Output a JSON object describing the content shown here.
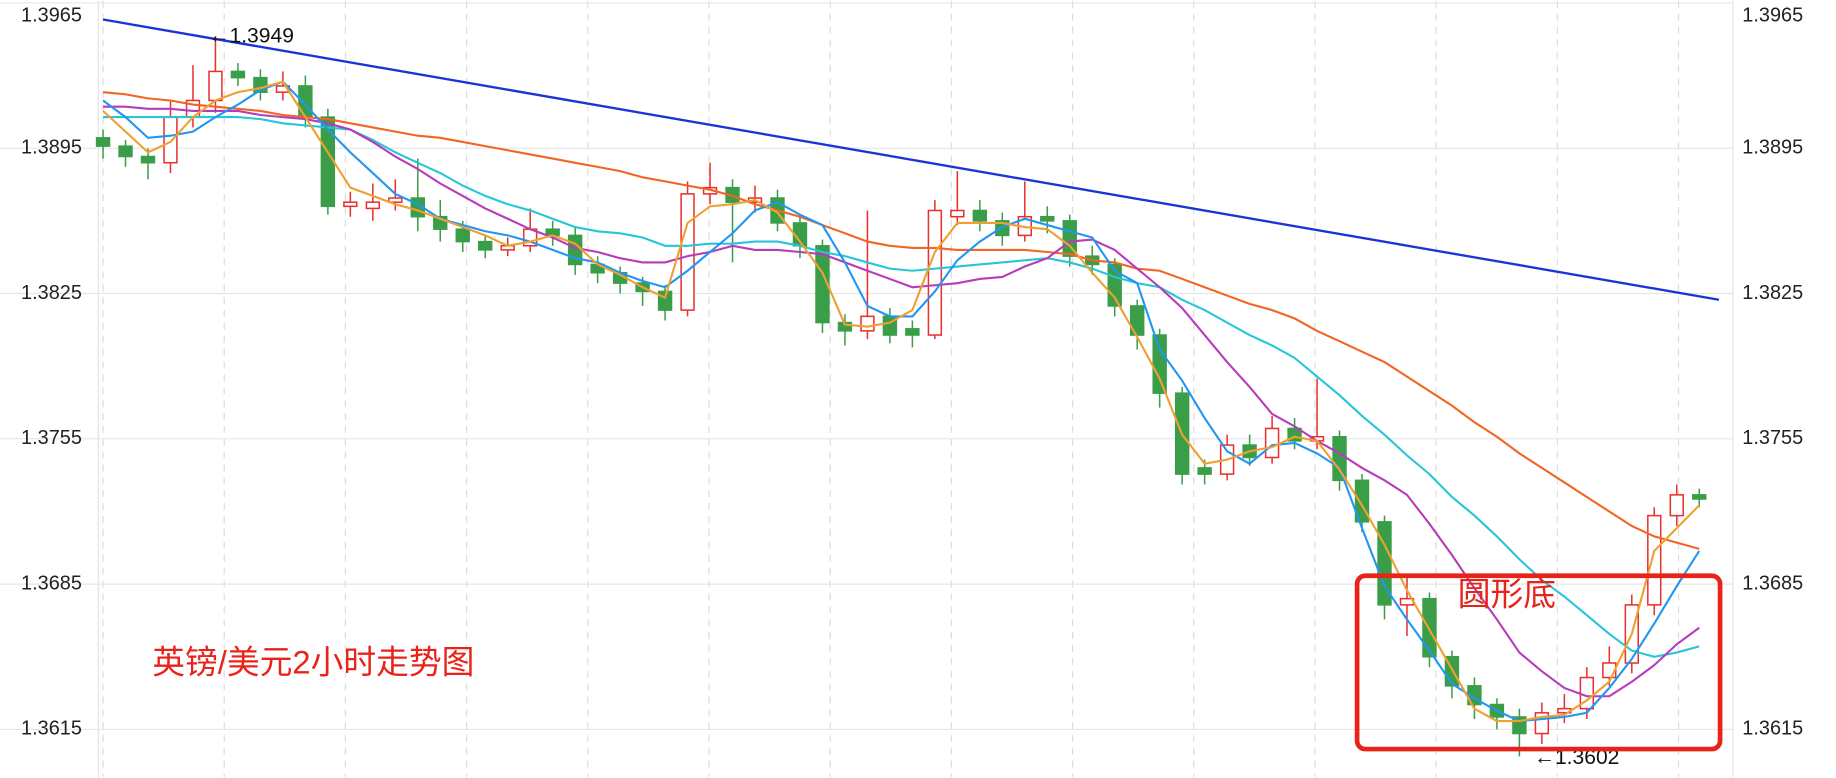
{
  "chart_data": {
    "type": "candlestick",
    "title": "英镑/美元2小时走势图",
    "ylim": [
      1.3592,
      1.3966
    ],
    "yticks": [
      1.3615,
      1.3685,
      1.3755,
      1.3825,
      1.3895,
      1.3965
    ],
    "grid": true,
    "up_color": "#e8302e",
    "down_color": "#3a9e49",
    "open": [
      1.39,
      1.3896,
      1.3891,
      1.3888,
      1.391,
      1.3918,
      1.3932,
      1.3929,
      1.3922,
      1.3925,
      1.391,
      1.3867,
      1.3866,
      1.3869,
      1.3871,
      1.3862,
      1.3856,
      1.385,
      1.3846,
      1.3848,
      1.3856,
      1.3853,
      1.3839,
      1.3835,
      1.383,
      1.3826,
      1.3817,
      1.3873,
      1.3876,
      1.3869,
      1.3871,
      1.3859,
      1.3848,
      1.3811,
      1.3807,
      1.3814,
      1.3808,
      1.3805,
      1.3862,
      1.3865,
      1.386,
      1.3853,
      1.3862,
      1.386,
      1.3843,
      1.3839,
      1.3819,
      1.3805,
      1.3777,
      1.3741,
      1.3738,
      1.3752,
      1.3746,
      1.376,
      1.3754,
      1.3756,
      1.3735,
      1.3715,
      1.3675,
      1.3678,
      1.365,
      1.3636,
      1.3627,
      1.3621,
      1.3613,
      1.3623,
      1.3625,
      1.364,
      1.3647,
      1.3675,
      1.3718,
      1.3728
    ],
    "high": [
      1.3904,
      1.3899,
      1.3895,
      1.3918,
      1.3935,
      1.3949,
      1.3936,
      1.3933,
      1.3932,
      1.393,
      1.3914,
      1.3874,
      1.3878,
      1.388,
      1.389,
      1.387,
      1.386,
      1.3853,
      1.3852,
      1.3866,
      1.386,
      1.3857,
      1.3843,
      1.3838,
      1.3833,
      1.3829,
      1.3879,
      1.3888,
      1.388,
      1.3877,
      1.3875,
      1.3862,
      1.3851,
      1.3815,
      1.3865,
      1.3818,
      1.3812,
      1.387,
      1.3884,
      1.387,
      1.3864,
      1.3879,
      1.3867,
      1.3863,
      1.3848,
      1.3842,
      1.3822,
      1.3808,
      1.378,
      1.3745,
      1.3757,
      1.3757,
      1.3766,
      1.3765,
      1.3784,
      1.3759,
      1.3738,
      1.3718,
      1.3688,
      1.3681,
      1.3653,
      1.364,
      1.363,
      1.3625,
      1.3628,
      1.3632,
      1.3645,
      1.3655,
      1.368,
      1.3722,
      1.3733,
      1.3731
    ],
    "low": [
      1.389,
      1.3886,
      1.388,
      1.3883,
      1.3905,
      1.3912,
      1.3925,
      1.3918,
      1.3918,
      1.3905,
      1.3863,
      1.3862,
      1.386,
      1.3865,
      1.3855,
      1.385,
      1.3845,
      1.3842,
      1.3843,
      1.3845,
      1.3848,
      1.3834,
      1.383,
      1.3825,
      1.3819,
      1.3812,
      1.3814,
      1.3868,
      1.384,
      1.3864,
      1.3855,
      1.3842,
      1.3806,
      1.38,
      1.3803,
      1.3801,
      1.3799,
      1.3803,
      1.3858,
      1.3855,
      1.3848,
      1.385,
      1.3854,
      1.3838,
      1.3834,
      1.3814,
      1.3798,
      1.377,
      1.3733,
      1.3733,
      1.3735,
      1.3742,
      1.3743,
      1.375,
      1.375,
      1.373,
      1.371,
      1.3668,
      1.366,
      1.3645,
      1.363,
      1.362,
      1.3615,
      1.3602,
      1.3608,
      1.3618,
      1.362,
      1.3636,
      1.3642,
      1.367,
      1.3713,
      1.3722
    ],
    "close": [
      1.3896,
      1.3891,
      1.3888,
      1.391,
      1.3918,
      1.3932,
      1.3929,
      1.3922,
      1.3925,
      1.391,
      1.3867,
      1.3869,
      1.3869,
      1.3871,
      1.3862,
      1.3856,
      1.385,
      1.3846,
      1.3848,
      1.3856,
      1.3853,
      1.3839,
      1.3835,
      1.383,
      1.3826,
      1.3817,
      1.3873,
      1.3876,
      1.3869,
      1.3871,
      1.3859,
      1.3848,
      1.3811,
      1.3807,
      1.3814,
      1.3805,
      1.3805,
      1.3865,
      1.3865,
      1.386,
      1.3853,
      1.3862,
      1.386,
      1.3843,
      1.3839,
      1.3819,
      1.3805,
      1.3777,
      1.3738,
      1.3738,
      1.3752,
      1.3746,
      1.376,
      1.3754,
      1.3756,
      1.3735,
      1.3715,
      1.3675,
      1.3678,
      1.365,
      1.3636,
      1.3627,
      1.3621,
      1.3613,
      1.3623,
      1.3625,
      1.364,
      1.3647,
      1.3675,
      1.3718,
      1.3728,
      1.3726
    ],
    "series": [
      {
        "color": "#f26522",
        "values": [
          1.3922,
          1.3921,
          1.3919,
          1.3918,
          1.3916,
          1.3915,
          1.3914,
          1.3913,
          1.3911,
          1.391,
          1.3909,
          1.3907,
          1.3905,
          1.3903,
          1.3901,
          1.39,
          1.3898,
          1.3896,
          1.3894,
          1.3892,
          1.389,
          1.3888,
          1.3886,
          1.3884,
          1.3881,
          1.3879,
          1.3877,
          1.3875,
          1.3872,
          1.3868,
          1.3865,
          1.3862,
          1.3858,
          1.3854,
          1.385,
          1.3848,
          1.3847,
          1.3847,
          1.3846,
          1.3846,
          1.3846,
          1.3846,
          1.3845,
          1.3844,
          1.3841,
          1.384,
          1.3837,
          1.3836,
          1.3832,
          1.3828,
          1.3824,
          1.382,
          1.3817,
          1.3813,
          1.3807,
          1.3802,
          1.3797,
          1.3792,
          1.3785,
          1.3778,
          1.3771,
          1.3763,
          1.3756,
          1.3748,
          1.3741,
          1.3734,
          1.3727,
          1.372,
          1.3713,
          1.3708,
          1.3705,
          1.3702
        ]
      },
      {
        "color": "#26c6da",
        "values": [
          1.391,
          1.391,
          1.391,
          1.391,
          1.391,
          1.391,
          1.391,
          1.3909,
          1.3907,
          1.3906,
          1.3905,
          1.3904,
          1.3899,
          1.3893,
          1.3888,
          1.3883,
          1.3877,
          1.3872,
          1.3868,
          1.3865,
          1.3861,
          1.3857,
          1.3855,
          1.3854,
          1.3852,
          1.3848,
          1.3848,
          1.3849,
          1.3849,
          1.385,
          1.385,
          1.3848,
          1.3845,
          1.3843,
          1.384,
          1.3837,
          1.3836,
          1.3837,
          1.3838,
          1.3839,
          1.384,
          1.3841,
          1.3842,
          1.384,
          1.3837,
          1.3833,
          1.383,
          1.3828,
          1.3822,
          1.3817,
          1.3811,
          1.3805,
          1.38,
          1.3794,
          1.3785,
          1.3776,
          1.3766,
          1.3757,
          1.3747,
          1.3738,
          1.3727,
          1.3718,
          1.3708,
          1.3697,
          1.3687,
          1.3679,
          1.367,
          1.3661,
          1.3653,
          1.365,
          1.3652,
          1.3655
        ]
      },
      {
        "color": "#b83bb8",
        "values": [
          1.3915,
          1.3915,
          1.3914,
          1.3914,
          1.3913,
          1.3913,
          1.3913,
          1.3911,
          1.391,
          1.3909,
          1.3907,
          1.3904,
          1.3898,
          1.3891,
          1.3885,
          1.3878,
          1.3872,
          1.3866,
          1.3861,
          1.3856,
          1.3852,
          1.3847,
          1.3845,
          1.3842,
          1.384,
          1.384,
          1.3843,
          1.3845,
          1.3848,
          1.3846,
          1.3846,
          1.3845,
          1.3844,
          1.384,
          1.3836,
          1.3832,
          1.3828,
          1.3829,
          1.383,
          1.3832,
          1.3833,
          1.3838,
          1.3842,
          1.385,
          1.3851,
          1.3846,
          1.3837,
          1.3828,
          1.3818,
          1.3805,
          1.3792,
          1.378,
          1.3767,
          1.3761,
          1.3754,
          1.3748,
          1.3741,
          1.3735,
          1.3728,
          1.3714,
          1.3699,
          1.3683,
          1.3668,
          1.3652,
          1.3643,
          1.3635,
          1.3631,
          1.3631,
          1.3638,
          1.3646,
          1.3656,
          1.3664
        ]
      },
      {
        "color": "#2196f3",
        "values": [
          1.3918,
          1.391,
          1.39,
          1.3901,
          1.3903,
          1.391,
          1.3916,
          1.3923,
          1.3927,
          1.3916,
          1.3904,
          1.3893,
          1.3883,
          1.3873,
          1.3868,
          1.3861,
          1.3858,
          1.3855,
          1.3853,
          1.385,
          1.3846,
          1.3842,
          1.384,
          1.3835,
          1.3831,
          1.3828,
          1.3836,
          1.3845,
          1.3854,
          1.3865,
          1.3869,
          1.3863,
          1.3858,
          1.384,
          1.3819,
          1.3814,
          1.3814,
          1.3826,
          1.3841,
          1.385,
          1.3857,
          1.3861,
          1.3858,
          1.3855,
          1.3852,
          1.3836,
          1.383,
          1.3798,
          1.3783,
          1.3765,
          1.3749,
          1.3743,
          1.3752,
          1.3753,
          1.3748,
          1.3741,
          1.3712,
          1.3684,
          1.3668,
          1.3653,
          1.3637,
          1.363,
          1.3624,
          1.3619,
          1.362,
          1.3621,
          1.3623,
          1.3635,
          1.3649,
          1.3666,
          1.3684,
          1.3701
        ]
      },
      {
        "color": "#f0a030",
        "values": [
          1.3913,
          1.3903,
          1.3893,
          1.3898,
          1.391,
          1.3918,
          1.3922,
          1.3924,
          1.3927,
          1.391,
          1.3893,
          1.3876,
          1.3872,
          1.3868,
          1.3865,
          1.3861,
          1.3857,
          1.3853,
          1.3848,
          1.385,
          1.3853,
          1.3849,
          1.3839,
          1.3834,
          1.3828,
          1.3823,
          1.3859,
          1.3867,
          1.3868,
          1.387,
          1.3864,
          1.385,
          1.3835,
          1.381,
          1.3809,
          1.3811,
          1.3817,
          1.3845,
          1.3859,
          1.3859,
          1.3859,
          1.3857,
          1.3856,
          1.3848,
          1.3835,
          1.3823,
          1.3804,
          1.3784,
          1.3757,
          1.3743,
          1.3745,
          1.3749,
          1.3751,
          1.3756,
          1.3754,
          1.374,
          1.3723,
          1.3704,
          1.3682,
          1.3663,
          1.3644,
          1.3625,
          1.3619,
          1.3619,
          1.3621,
          1.3622,
          1.3629,
          1.3638,
          1.3661,
          1.3701,
          1.3712,
          1.3723
        ]
      }
    ],
    "trendline": {
      "color": "#1a35d6",
      "values": [
        1.3957,
        1.3822
      ]
    },
    "annotations": [
      {
        "text": "←1.3949"
      },
      {
        "text": "←1.3602"
      },
      {
        "text": "圆形底"
      }
    ]
  }
}
